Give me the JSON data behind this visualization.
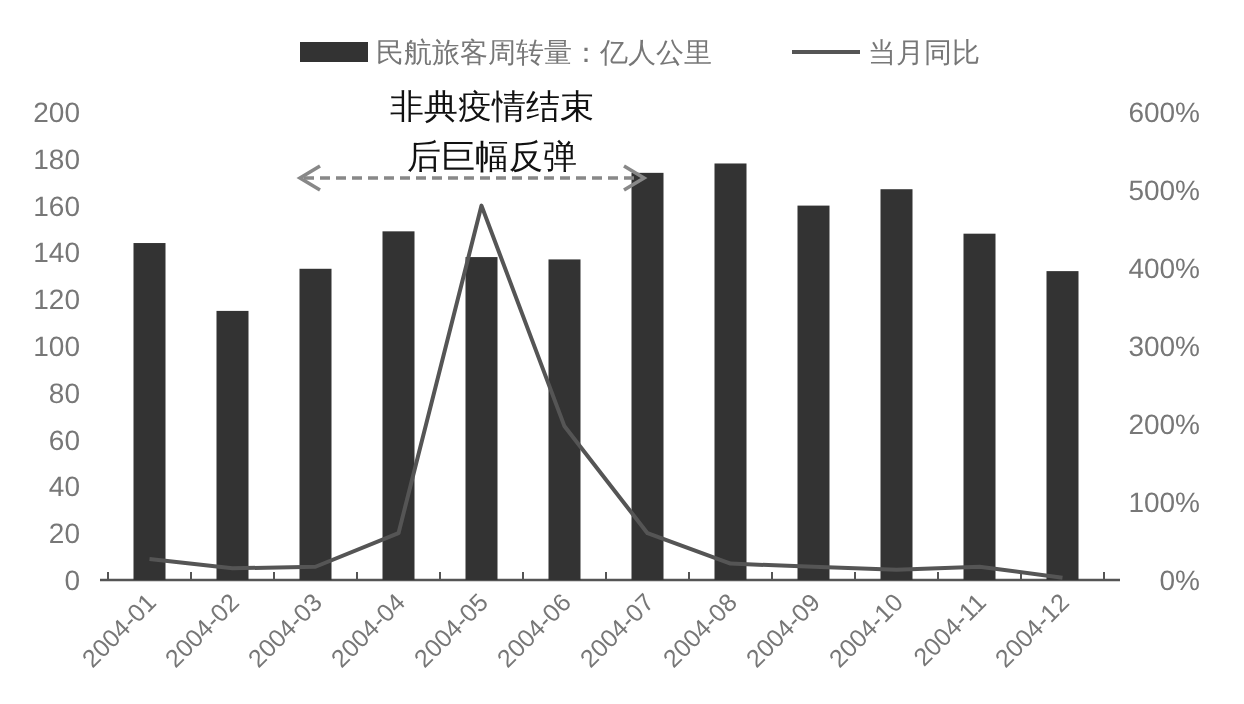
{
  "chart_data": {
    "type": "bar",
    "categories": [
      "2004-01",
      "2004-02",
      "2004-03",
      "2004-04",
      "2004-05",
      "2004-06",
      "2004-07",
      "2004-08",
      "2004-09",
      "2004-10",
      "2004-11",
      "2004-12"
    ],
    "series": [
      {
        "name": "民航旅客周转量：亿人公里",
        "color": "#333333",
        "values": [
          144,
          115,
          133,
          149,
          138,
          137,
          174,
          178,
          160,
          167,
          148,
          132
        ]
      },
      {
        "name": "当月同比",
        "type": "line",
        "axis": "y2",
        "color": "#555555",
        "values": [
          27,
          15,
          17,
          60,
          480,
          197,
          60,
          21,
          17,
          13,
          17,
          3
        ]
      }
    ],
    "ylim": [
      0,
      200
    ],
    "yticks": [
      0,
      20,
      40,
      60,
      80,
      100,
      120,
      140,
      160,
      180,
      200
    ],
    "y2lim": [
      0,
      600
    ],
    "y2ticks": [
      {
        "value": 0,
        "label": "0%"
      },
      {
        "value": 100,
        "label": "100%"
      },
      {
        "value": 200,
        "label": "200%"
      },
      {
        "value": 300,
        "label": "300%"
      },
      {
        "value": 400,
        "label": "400%"
      },
      {
        "value": 500,
        "label": "500%"
      },
      {
        "value": 600,
        "label": "600%"
      }
    ],
    "annotations": [
      "非典疫情结束",
      "后巨幅反弹"
    ],
    "grid": false,
    "legend": "top",
    "marker": "none",
    "line_style": "solid"
  }
}
